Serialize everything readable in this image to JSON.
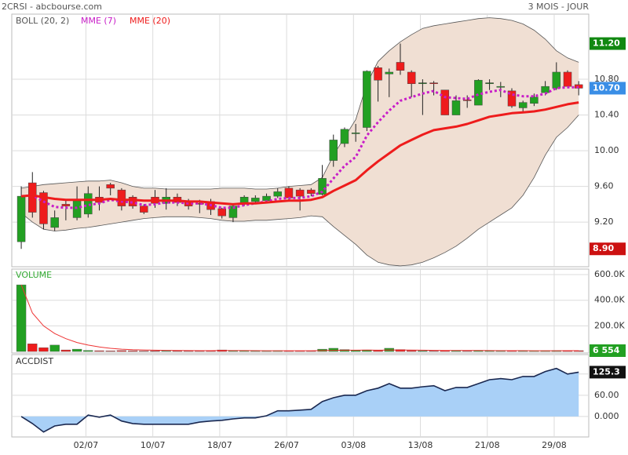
{
  "chart_data": [
    {
      "type": "candlestick",
      "title": "2CRSI - abcbourse.com",
      "subtitle": "3 MOIS - JOUR",
      "up_color": "#22a022",
      "down_color": "#ee1c1c",
      "open": [
        8.98,
        9.64,
        9.53,
        9.14,
        9.4,
        9.25,
        9.29,
        9.48,
        9.62,
        9.56,
        9.48,
        9.38,
        9.48,
        9.41,
        9.48,
        9.43,
        9.41,
        9.43,
        9.35,
        9.25,
        9.4,
        9.43,
        9.44,
        9.49,
        9.58,
        9.56,
        9.56,
        9.51,
        9.89,
        10.08,
        10.19,
        10.26,
        10.93,
        10.86,
        10.99,
        10.88,
        10.76,
        10.76,
        10.68,
        10.4,
        10.57,
        10.51,
        10.76,
        10.71,
        10.67,
        10.48,
        10.53,
        10.65,
        10.7,
        10.88,
        10.74
      ],
      "high": [
        9.6,
        9.76,
        9.55,
        9.33,
        9.44,
        9.6,
        9.6,
        9.6,
        9.64,
        9.58,
        9.5,
        9.4,
        9.56,
        9.58,
        9.52,
        9.46,
        9.45,
        9.46,
        9.36,
        9.4,
        9.5,
        9.5,
        9.52,
        9.58,
        9.6,
        9.58,
        9.58,
        9.84,
        10.18,
        10.26,
        10.3,
        10.9,
        10.95,
        10.92,
        11.2,
        10.9,
        10.8,
        10.78,
        10.68,
        10.62,
        10.62,
        10.8,
        10.8,
        10.77,
        10.7,
        10.56,
        10.64,
        10.78,
        10.99,
        10.9,
        10.78
      ],
      "low": [
        8.9,
        9.25,
        9.12,
        9.1,
        9.22,
        9.22,
        9.25,
        9.33,
        9.5,
        9.33,
        9.35,
        9.29,
        9.36,
        9.34,
        9.38,
        9.34,
        9.3,
        9.28,
        9.24,
        9.2,
        9.38,
        9.4,
        9.42,
        9.47,
        9.45,
        9.33,
        9.49,
        9.5,
        9.82,
        10.04,
        10.1,
        10.22,
        10.55,
        10.6,
        10.85,
        10.6,
        10.4,
        10.62,
        10.4,
        10.4,
        10.48,
        10.51,
        10.68,
        10.6,
        10.48,
        10.42,
        10.5,
        10.62,
        10.68,
        10.7,
        10.62
      ],
      "close": [
        9.49,
        9.31,
        9.18,
        9.25,
        9.38,
        9.44,
        9.52,
        9.42,
        9.58,
        9.38,
        9.38,
        9.31,
        9.41,
        9.48,
        9.42,
        9.38,
        9.4,
        9.34,
        9.27,
        9.38,
        9.48,
        9.47,
        9.49,
        9.54,
        9.47,
        9.49,
        9.52,
        9.69,
        10.12,
        10.24,
        10.2,
        10.89,
        10.79,
        10.88,
        10.9,
        10.75,
        10.76,
        10.75,
        10.4,
        10.56,
        10.56,
        10.79,
        10.76,
        10.72,
        10.5,
        10.54,
        10.6,
        10.72,
        10.88,
        10.72,
        10.7
      ],
      "bands": {
        "name": "BOLL (20, 2)",
        "color": "#555555",
        "fill": "#f0dfd3",
        "upper": [
          9.58,
          9.6,
          9.62,
          9.63,
          9.64,
          9.65,
          9.66,
          9.66,
          9.67,
          9.64,
          9.6,
          9.58,
          9.58,
          9.57,
          9.57,
          9.57,
          9.57,
          9.57,
          9.58,
          9.58,
          9.58,
          9.57,
          9.57,
          9.58,
          9.6,
          9.61,
          9.62,
          9.7,
          9.95,
          10.15,
          10.35,
          10.75,
          11.0,
          11.12,
          11.22,
          11.3,
          11.37,
          11.4,
          11.42,
          11.44,
          11.46,
          11.48,
          11.49,
          11.48,
          11.46,
          11.42,
          11.35,
          11.25,
          11.12,
          11.04,
          10.99
        ],
        "lower": [
          9.3,
          9.2,
          9.12,
          9.1,
          9.11,
          9.13,
          9.14,
          9.16,
          9.18,
          9.2,
          9.22,
          9.24,
          9.25,
          9.26,
          9.26,
          9.26,
          9.25,
          9.24,
          9.22,
          9.21,
          9.21,
          9.22,
          9.22,
          9.23,
          9.24,
          9.25,
          9.27,
          9.26,
          9.15,
          9.05,
          8.95,
          8.83,
          8.75,
          8.72,
          8.71,
          8.72,
          8.75,
          8.8,
          8.86,
          8.93,
          9.02,
          9.12,
          9.2,
          9.28,
          9.36,
          9.5,
          9.7,
          9.95,
          10.15,
          10.26,
          10.4
        ]
      },
      "series": [
        {
          "name": "MME (7)",
          "color": "#c81ec8",
          "dotted": true,
          "values": [
            9.49,
            9.5,
            9.43,
            9.37,
            9.36,
            9.36,
            9.39,
            9.41,
            9.45,
            9.43,
            9.42,
            9.39,
            9.4,
            9.42,
            9.42,
            9.41,
            9.41,
            9.39,
            9.36,
            9.36,
            9.39,
            9.41,
            9.43,
            9.46,
            9.47,
            9.47,
            9.49,
            9.54,
            9.69,
            9.83,
            9.93,
            10.17,
            10.32,
            10.45,
            10.56,
            10.6,
            10.64,
            10.67,
            10.6,
            10.59,
            10.58,
            10.63,
            10.66,
            10.68,
            10.63,
            10.61,
            10.61,
            10.64,
            10.7,
            10.71,
            10.71
          ]
        },
        {
          "name": "MME (20)",
          "color": "#ee1c1c",
          "dotted": false,
          "values": [
            9.49,
            9.5,
            9.48,
            9.46,
            9.45,
            9.45,
            9.45,
            9.45,
            9.46,
            9.45,
            9.45,
            9.44,
            9.44,
            9.44,
            9.44,
            9.43,
            9.43,
            9.42,
            9.41,
            9.4,
            9.41,
            9.41,
            9.42,
            9.43,
            9.44,
            9.44,
            9.45,
            9.48,
            9.55,
            9.61,
            9.67,
            9.78,
            9.88,
            9.97,
            10.06,
            10.12,
            10.18,
            10.23,
            10.25,
            10.27,
            10.3,
            10.34,
            10.38,
            10.4,
            10.42,
            10.43,
            10.44,
            10.46,
            10.49,
            10.52,
            10.54
          ]
        }
      ],
      "annotations": [
        {
          "value": 11.2,
          "label": "11.20",
          "color": "#118811"
        },
        {
          "value": 10.7,
          "label": "10.70",
          "color": "#3a8ee6"
        },
        {
          "value": 8.9,
          "label": "8.90",
          "color": "#cc1111"
        }
      ],
      "ylim": [
        8.7,
        11.53
      ],
      "yticks": [
        {
          "value": 9.2,
          "label": "9.20"
        },
        {
          "value": 9.6,
          "label": "9.60"
        },
        {
          "value": 10,
          "label": "10.00"
        },
        {
          "value": 10.4,
          "label": "10.40"
        },
        {
          "value": 10.8,
          "label": "10.80"
        }
      ],
      "grid": true
    },
    {
      "type": "bar",
      "title": "VOLUME",
      "title_color": "#33aa33",
      "values": [
        520000,
        60000,
        30000,
        50000,
        12000,
        18000,
        8000,
        6000,
        5000,
        7000,
        6000,
        4000,
        5000,
        4000,
        5000,
        4000,
        4000,
        6000,
        12000,
        5000,
        6000,
        4000,
        4000,
        6000,
        5000,
        5000,
        4000,
        18000,
        25000,
        15000,
        10000,
        12000,
        8000,
        25000,
        15000,
        7000,
        5000,
        4000,
        8000,
        6000,
        4000,
        7000,
        5000,
        4000,
        8000,
        4000,
        5000,
        6000,
        7000,
        8000,
        6554
      ],
      "average": [
        520000,
        300000,
        200000,
        140000,
        100000,
        70000,
        50000,
        35000,
        25000,
        18000,
        14000,
        12000,
        10000,
        9000,
        8000,
        7000,
        6500,
        6500,
        7500,
        7000,
        6800,
        6500,
        6000,
        6000,
        6000,
        5800,
        5500,
        7000,
        9000,
        10000,
        10000,
        10500,
        10000,
        11000,
        12000,
        11000,
        10000,
        9000,
        8500,
        8000,
        7500,
        7500,
        7000,
        6500,
        6500,
        6500,
        6000,
        6000,
        6000,
        6500,
        6500
      ],
      "average_color": "#ee3333",
      "last": {
        "value": 6554,
        "label": "6 554",
        "color": "#22a022"
      },
      "ylim": [
        -12000,
        643000
      ],
      "yticks": [
        {
          "value": 200000,
          "label": "200.0K"
        },
        {
          "value": 400000,
          "label": "400.0K"
        },
        {
          "value": 600000,
          "label": "600.0K"
        }
      ],
      "grid": true
    },
    {
      "type": "area",
      "title": "ACCDIST",
      "color": "#a9d0f7",
      "line_color": "#1a2850",
      "values": [
        0,
        -20,
        -44,
        -27,
        -22,
        -22,
        4,
        -2,
        4,
        -13,
        -20,
        -22,
        -22,
        -22,
        -22,
        -22,
        -16,
        -13,
        -11,
        -7,
        -4,
        -4,
        2,
        16,
        16,
        18,
        20,
        42,
        53,
        60,
        60,
        73,
        80,
        93,
        80,
        80,
        84,
        87,
        73,
        82,
        82,
        93,
        104,
        107,
        104,
        113,
        113,
        127,
        136,
        120,
        125.3
      ],
      "last": {
        "value": 125.3,
        "label": "125.3",
        "color": "#111111"
      },
      "ylim": [
        -58,
        175
      ],
      "yticks": [
        {
          "value": 0,
          "label": "0.000"
        },
        {
          "value": 60,
          "label": "60.00"
        },
        {
          "value": 120,
          "label": "120.0"
        }
      ],
      "xlim": [
        -0.85,
        50.9
      ],
      "xticks": [
        {
          "value": 5.8,
          "label": "02/07"
        },
        {
          "value": 11.8,
          "label": "10/07"
        },
        {
          "value": 17.8,
          "label": "18/07"
        },
        {
          "value": 23.8,
          "label": "26/07"
        },
        {
          "value": 29.8,
          "label": "03/08"
        },
        {
          "value": 35.8,
          "label": "13/08"
        },
        {
          "value": 41.8,
          "label": "21/08"
        },
        {
          "value": 47.8,
          "label": "29/08"
        }
      ],
      "grid": true
    }
  ]
}
